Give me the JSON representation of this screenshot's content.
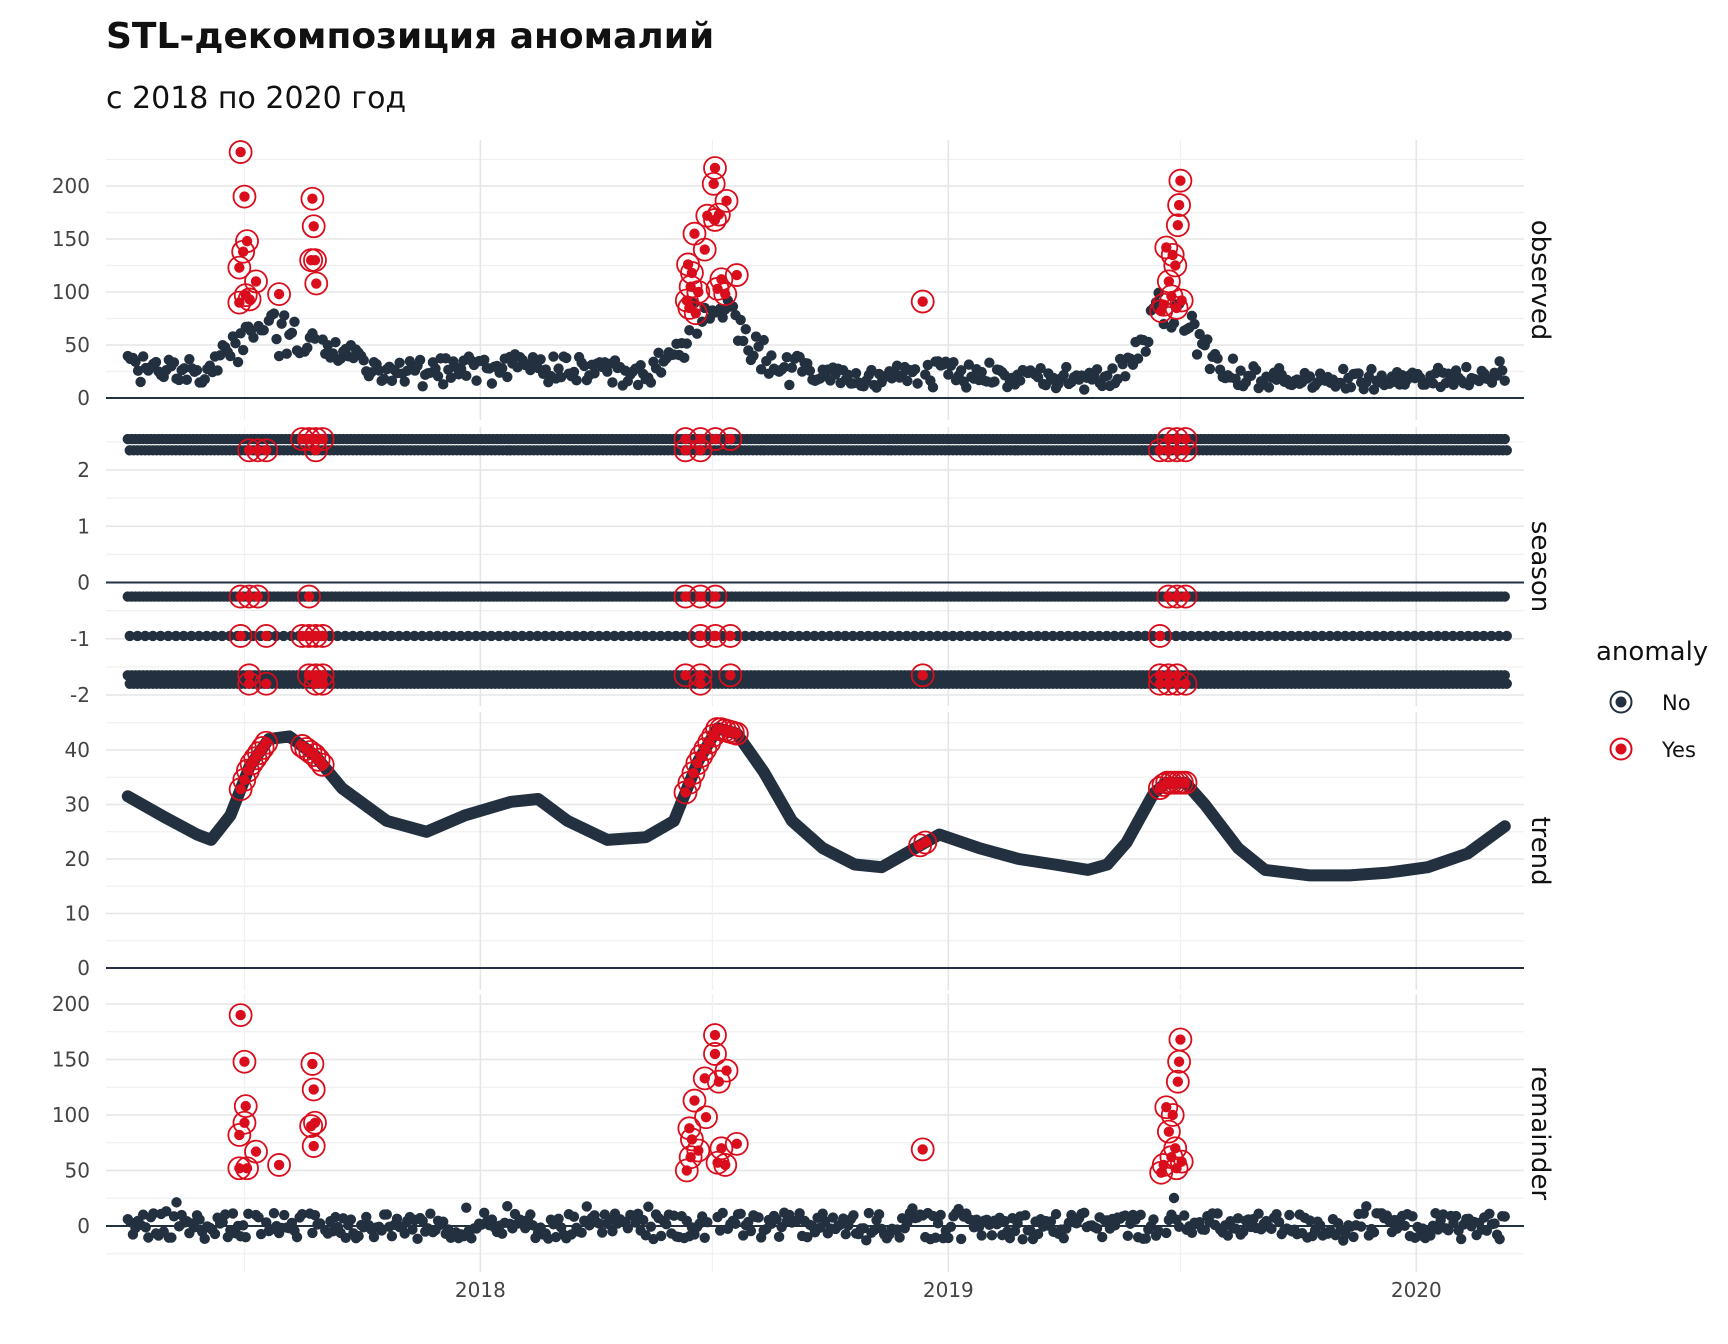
{
  "chart_data": {
    "type": "scatter",
    "title": "STL-декомпозиция аномалий",
    "subtitle": "с 2018 по 2020 год",
    "x_ticks": [
      "2018",
      "2019",
      "2020"
    ],
    "x_range": [
      "2017-03-15",
      "2020-03-25"
    ],
    "grid": true,
    "legend": {
      "title": "anomaly",
      "position": "right",
      "entries": [
        {
          "label": "No",
          "color": "#22303f"
        },
        {
          "label": "Yes",
          "color": "#d90d1c"
        }
      ]
    },
    "colors": {
      "normal": "#22303f",
      "anomaly": "#d90d1c"
    },
    "series_start": "2017-04-01",
    "series_end": "2020-03-10",
    "anomaly_windows": [
      [
        "2017-06-28",
        "2017-07-18"
      ],
      [
        "2017-08-15",
        "2017-08-31"
      ],
      [
        "2018-06-10",
        "2018-07-15"
      ],
      [
        "2018-12-10",
        "2018-12-14"
      ],
      [
        "2019-06-15",
        "2019-07-05"
      ]
    ],
    "panels": [
      {
        "name": "observed",
        "strip_label": "observed",
        "y_ticks": [
          0,
          50,
          100,
          150,
          200
        ],
        "ylim": [
          0,
          230
        ],
        "peaks": [
          {
            "date": "2017-07-07",
            "height": 25
          },
          {
            "date": "2017-08-20",
            "height": 18
          },
          {
            "date": "2018-06-28",
            "height": 40
          },
          {
            "date": "2019-06-22",
            "height": 45
          }
        ],
        "anomalies": [
          {
            "date": "2017-06-28",
            "value": 232
          },
          {
            "date": "2017-07-01",
            "value": 190
          },
          {
            "date": "2017-07-03",
            "value": 148
          },
          {
            "date": "2017-06-30",
            "value": 138
          },
          {
            "date": "2017-06-27",
            "value": 123
          },
          {
            "date": "2017-07-10",
            "value": 110
          },
          {
            "date": "2017-07-02",
            "value": 97
          },
          {
            "date": "2017-06-27",
            "value": 90
          },
          {
            "date": "2017-07-05",
            "value": 93
          },
          {
            "date": "2017-07-28",
            "value": 98
          },
          {
            "date": "2017-08-23",
            "value": 188
          },
          {
            "date": "2017-08-24",
            "value": 162
          },
          {
            "date": "2017-08-22",
            "value": 130
          },
          {
            "date": "2017-08-25",
            "value": 130
          },
          {
            "date": "2017-08-26",
            "value": 108
          },
          {
            "date": "2018-07-03",
            "value": 217
          },
          {
            "date": "2018-07-02",
            "value": 202
          },
          {
            "date": "2018-07-12",
            "value": 186
          },
          {
            "date": "2018-06-27",
            "value": 172
          },
          {
            "date": "2018-07-06",
            "value": 173
          },
          {
            "date": "2018-07-03",
            "value": 168
          },
          {
            "date": "2018-06-17",
            "value": 155
          },
          {
            "date": "2018-06-25",
            "value": 140
          },
          {
            "date": "2018-06-12",
            "value": 126
          },
          {
            "date": "2018-06-15",
            "value": 118
          },
          {
            "date": "2018-07-20",
            "value": 116
          },
          {
            "date": "2018-07-08",
            "value": 112
          },
          {
            "date": "2018-06-14",
            "value": 105
          },
          {
            "date": "2018-07-05",
            "value": 103
          },
          {
            "date": "2018-06-20",
            "value": 100
          },
          {
            "date": "2018-07-11",
            "value": 98
          },
          {
            "date": "2018-06-11",
            "value": 92
          },
          {
            "date": "2018-06-13",
            "value": 85
          },
          {
            "date": "2018-06-18",
            "value": 80
          },
          {
            "date": "2018-12-12",
            "value": 91
          },
          {
            "date": "2019-07-01",
            "value": 205
          },
          {
            "date": "2019-06-30",
            "value": 182
          },
          {
            "date": "2019-06-29",
            "value": 163
          },
          {
            "date": "2019-06-20",
            "value": 142
          },
          {
            "date": "2019-06-25",
            "value": 135
          },
          {
            "date": "2019-06-27",
            "value": 125
          },
          {
            "date": "2019-06-22",
            "value": 110
          },
          {
            "date": "2019-06-24",
            "value": 96
          },
          {
            "date": "2019-07-02",
            "value": 92
          },
          {
            "date": "2019-06-18",
            "value": 88
          },
          {
            "date": "2019-06-28",
            "value": 85
          },
          {
            "date": "2019-06-16",
            "value": 82
          }
        ]
      },
      {
        "name": "season",
        "strip_label": "season",
        "y_ticks": [
          -2,
          -1,
          0,
          1,
          2
        ],
        "ylim": [
          -2.0,
          2.7
        ],
        "levels": [
          2.55,
          2.35,
          -0.25,
          -0.95,
          -1.65,
          -1.8
        ],
        "anomaly_levels": [
          2.55,
          2.35,
          -0.25,
          -0.95,
          -1.65,
          -1.8
        ]
      },
      {
        "name": "trend",
        "strip_label": "trend",
        "y_ticks": [
          0,
          10,
          20,
          30,
          40
        ],
        "ylim": [
          0,
          46
        ],
        "line": [
          {
            "date": "2017-04-01",
            "value": 31.5
          },
          {
            "date": "2017-05-01",
            "value": 27.5
          },
          {
            "date": "2017-05-25",
            "value": 24.5
          },
          {
            "date": "2017-06-05",
            "value": 23.5
          },
          {
            "date": "2017-06-20",
            "value": 28
          },
          {
            "date": "2017-07-05",
            "value": 37
          },
          {
            "date": "2017-07-20",
            "value": 42
          },
          {
            "date": "2017-08-05",
            "value": 42.5
          },
          {
            "date": "2017-08-25",
            "value": 39
          },
          {
            "date": "2017-09-15",
            "value": 33
          },
          {
            "date": "2017-10-20",
            "value": 27
          },
          {
            "date": "2017-11-20",
            "value": 25
          },
          {
            "date": "2017-12-20",
            "value": 28
          },
          {
            "date": "2018-01-25",
            "value": 30.5
          },
          {
            "date": "2018-02-15",
            "value": 31
          },
          {
            "date": "2018-03-10",
            "value": 27
          },
          {
            "date": "2018-04-10",
            "value": 23.5
          },
          {
            "date": "2018-05-10",
            "value": 24
          },
          {
            "date": "2018-06-01",
            "value": 27
          },
          {
            "date": "2018-06-20",
            "value": 38
          },
          {
            "date": "2018-07-05",
            "value": 44
          },
          {
            "date": "2018-07-20",
            "value": 43
          },
          {
            "date": "2018-08-10",
            "value": 36
          },
          {
            "date": "2018-09-01",
            "value": 27
          },
          {
            "date": "2018-09-25",
            "value": 22
          },
          {
            "date": "2018-10-20",
            "value": 19
          },
          {
            "date": "2018-11-10",
            "value": 18.5
          },
          {
            "date": "2018-12-10",
            "value": 22.5
          },
          {
            "date": "2018-12-25",
            "value": 24.5
          },
          {
            "date": "2019-01-25",
            "value": 22
          },
          {
            "date": "2019-02-25",
            "value": 20
          },
          {
            "date": "2019-03-25",
            "value": 19
          },
          {
            "date": "2019-04-20",
            "value": 18
          },
          {
            "date": "2019-05-05",
            "value": 19
          },
          {
            "date": "2019-05-20",
            "value": 23
          },
          {
            "date": "2019-06-10",
            "value": 32
          },
          {
            "date": "2019-06-20",
            "value": 34
          },
          {
            "date": "2019-07-05",
            "value": 34
          },
          {
            "date": "2019-07-20",
            "value": 30
          },
          {
            "date": "2019-08-15",
            "value": 22
          },
          {
            "date": "2019-09-05",
            "value": 18
          },
          {
            "date": "2019-10-10",
            "value": 17
          },
          {
            "date": "2019-11-10",
            "value": 17
          },
          {
            "date": "2019-12-10",
            "value": 17.5
          },
          {
            "date": "2020-01-10",
            "value": 18.5
          },
          {
            "date": "2020-02-10",
            "value": 21
          },
          {
            "date": "2020-03-10",
            "value": 26
          }
        ],
        "anomaly_window_ranges": [
          [
            "2017-06-28",
            "2017-07-18"
          ],
          [
            "2017-08-15",
            "2017-08-31"
          ],
          [
            "2018-06-10",
            "2018-07-20"
          ],
          [
            "2018-12-10",
            "2018-12-14"
          ],
          [
            "2019-06-15",
            "2019-07-05"
          ]
        ]
      },
      {
        "name": "remainder",
        "strip_label": "remainder",
        "y_ticks": [
          0,
          50,
          100,
          150,
          200
        ],
        "ylim": [
          -30,
          200
        ],
        "anomalies": [
          {
            "date": "2017-06-28",
            "value": 190
          },
          {
            "date": "2017-07-01",
            "value": 148
          },
          {
            "date": "2017-07-02",
            "value": 108
          },
          {
            "date": "2017-07-01",
            "value": 93
          },
          {
            "date": "2017-06-27",
            "value": 82
          },
          {
            "date": "2017-07-10",
            "value": 67
          },
          {
            "date": "2017-06-27",
            "value": 52
          },
          {
            "date": "2017-07-03",
            "value": 52
          },
          {
            "date": "2017-07-28",
            "value": 55
          },
          {
            "date": "2017-08-23",
            "value": 146
          },
          {
            "date": "2017-08-24",
            "value": 123
          },
          {
            "date": "2017-08-22",
            "value": 90
          },
          {
            "date": "2017-08-25",
            "value": 93
          },
          {
            "date": "2017-08-24",
            "value": 72
          },
          {
            "date": "2018-07-03",
            "value": 172
          },
          {
            "date": "2018-07-03",
            "value": 155
          },
          {
            "date": "2018-07-12",
            "value": 140
          },
          {
            "date": "2018-06-25",
            "value": 133
          },
          {
            "date": "2018-07-06",
            "value": 130
          },
          {
            "date": "2018-06-17",
            "value": 113
          },
          {
            "date": "2018-06-26",
            "value": 98
          },
          {
            "date": "2018-06-13",
            "value": 88
          },
          {
            "date": "2018-06-15",
            "value": 78
          },
          {
            "date": "2018-07-20",
            "value": 74
          },
          {
            "date": "2018-07-08",
            "value": 70
          },
          {
            "date": "2018-06-20",
            "value": 68
          },
          {
            "date": "2018-06-14",
            "value": 62
          },
          {
            "date": "2018-07-05",
            "value": 57
          },
          {
            "date": "2018-06-11",
            "value": 50
          },
          {
            "date": "2018-07-11",
            "value": 55
          },
          {
            "date": "2018-12-12",
            "value": 69
          },
          {
            "date": "2019-07-01",
            "value": 168
          },
          {
            "date": "2019-06-30",
            "value": 148
          },
          {
            "date": "2019-06-29",
            "value": 130
          },
          {
            "date": "2019-06-20",
            "value": 107
          },
          {
            "date": "2019-06-25",
            "value": 100
          },
          {
            "date": "2019-06-22",
            "value": 85
          },
          {
            "date": "2019-06-27",
            "value": 70
          },
          {
            "date": "2019-06-24",
            "value": 62
          },
          {
            "date": "2019-07-02",
            "value": 58
          },
          {
            "date": "2019-06-18",
            "value": 55
          },
          {
            "date": "2019-06-16",
            "value": 48
          },
          {
            "date": "2019-06-28",
            "value": 52
          }
        ]
      }
    ]
  }
}
